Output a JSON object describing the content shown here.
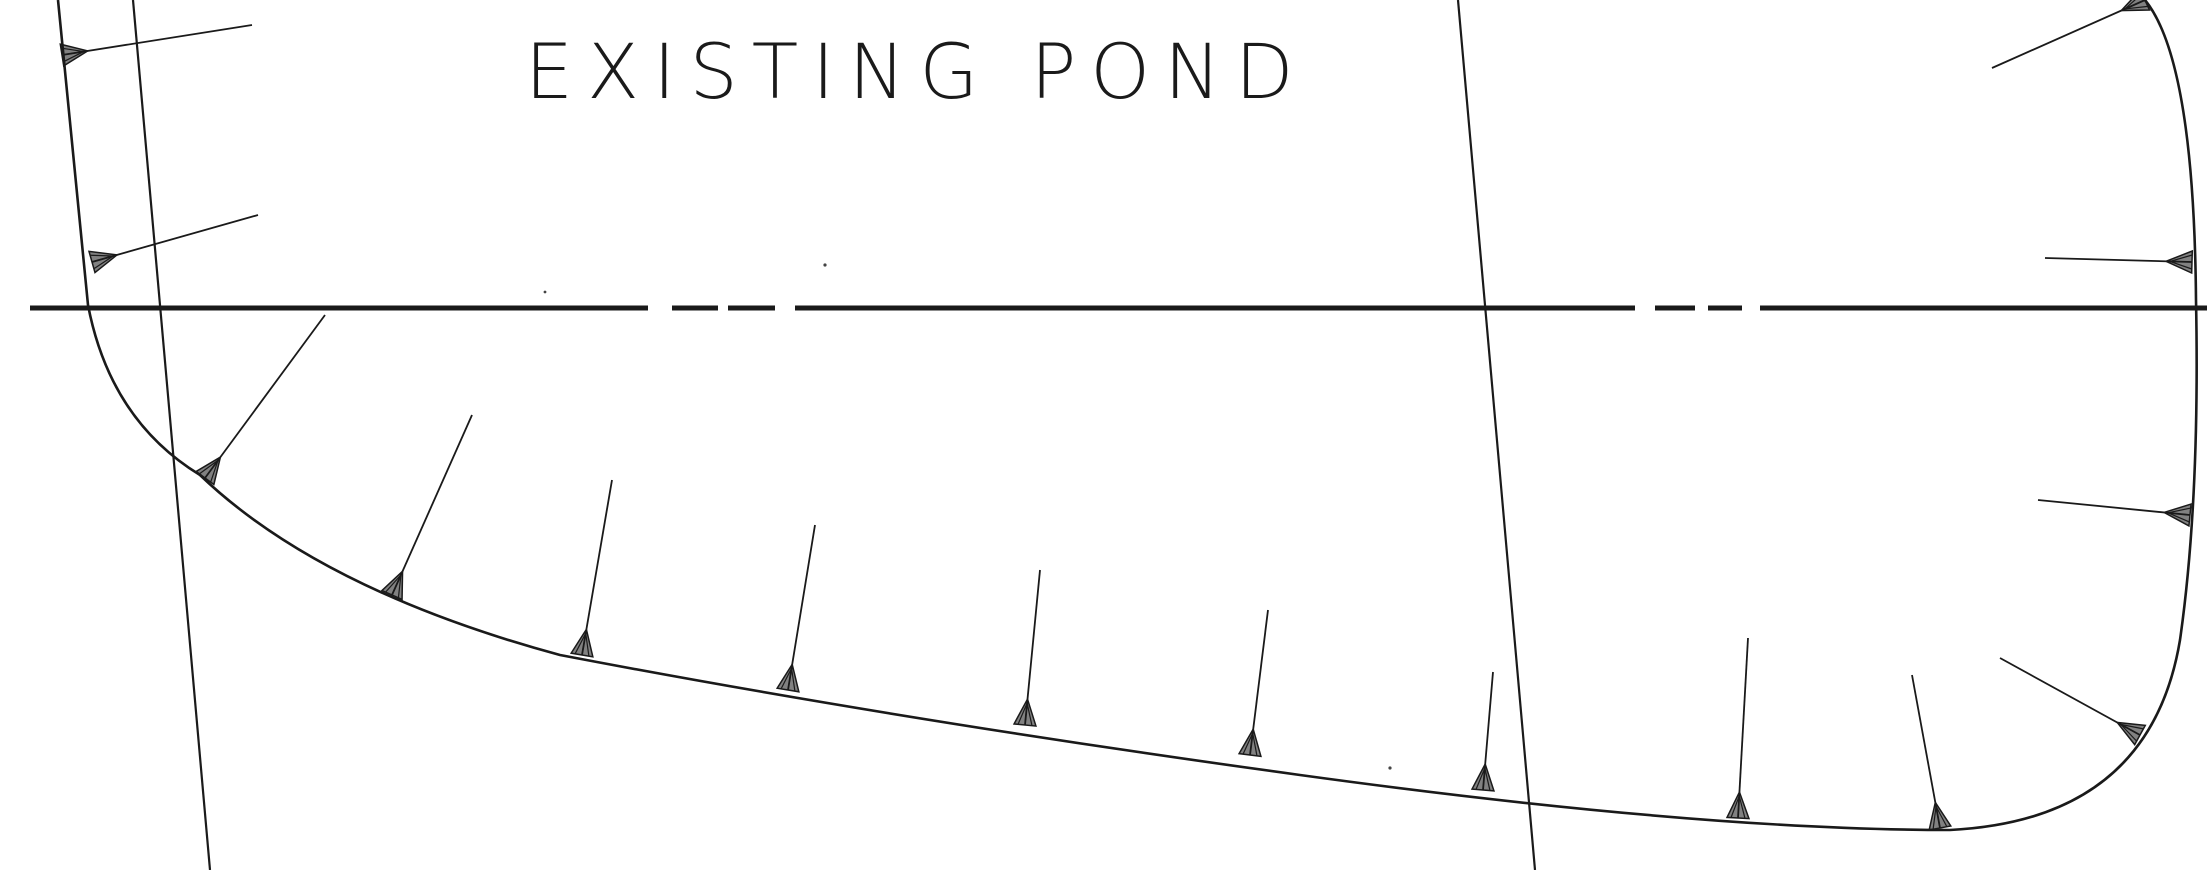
{
  "drawing": {
    "title": "EXISTING POND",
    "line_color": "#1a1a1a",
    "background": "#ffffff"
  }
}
